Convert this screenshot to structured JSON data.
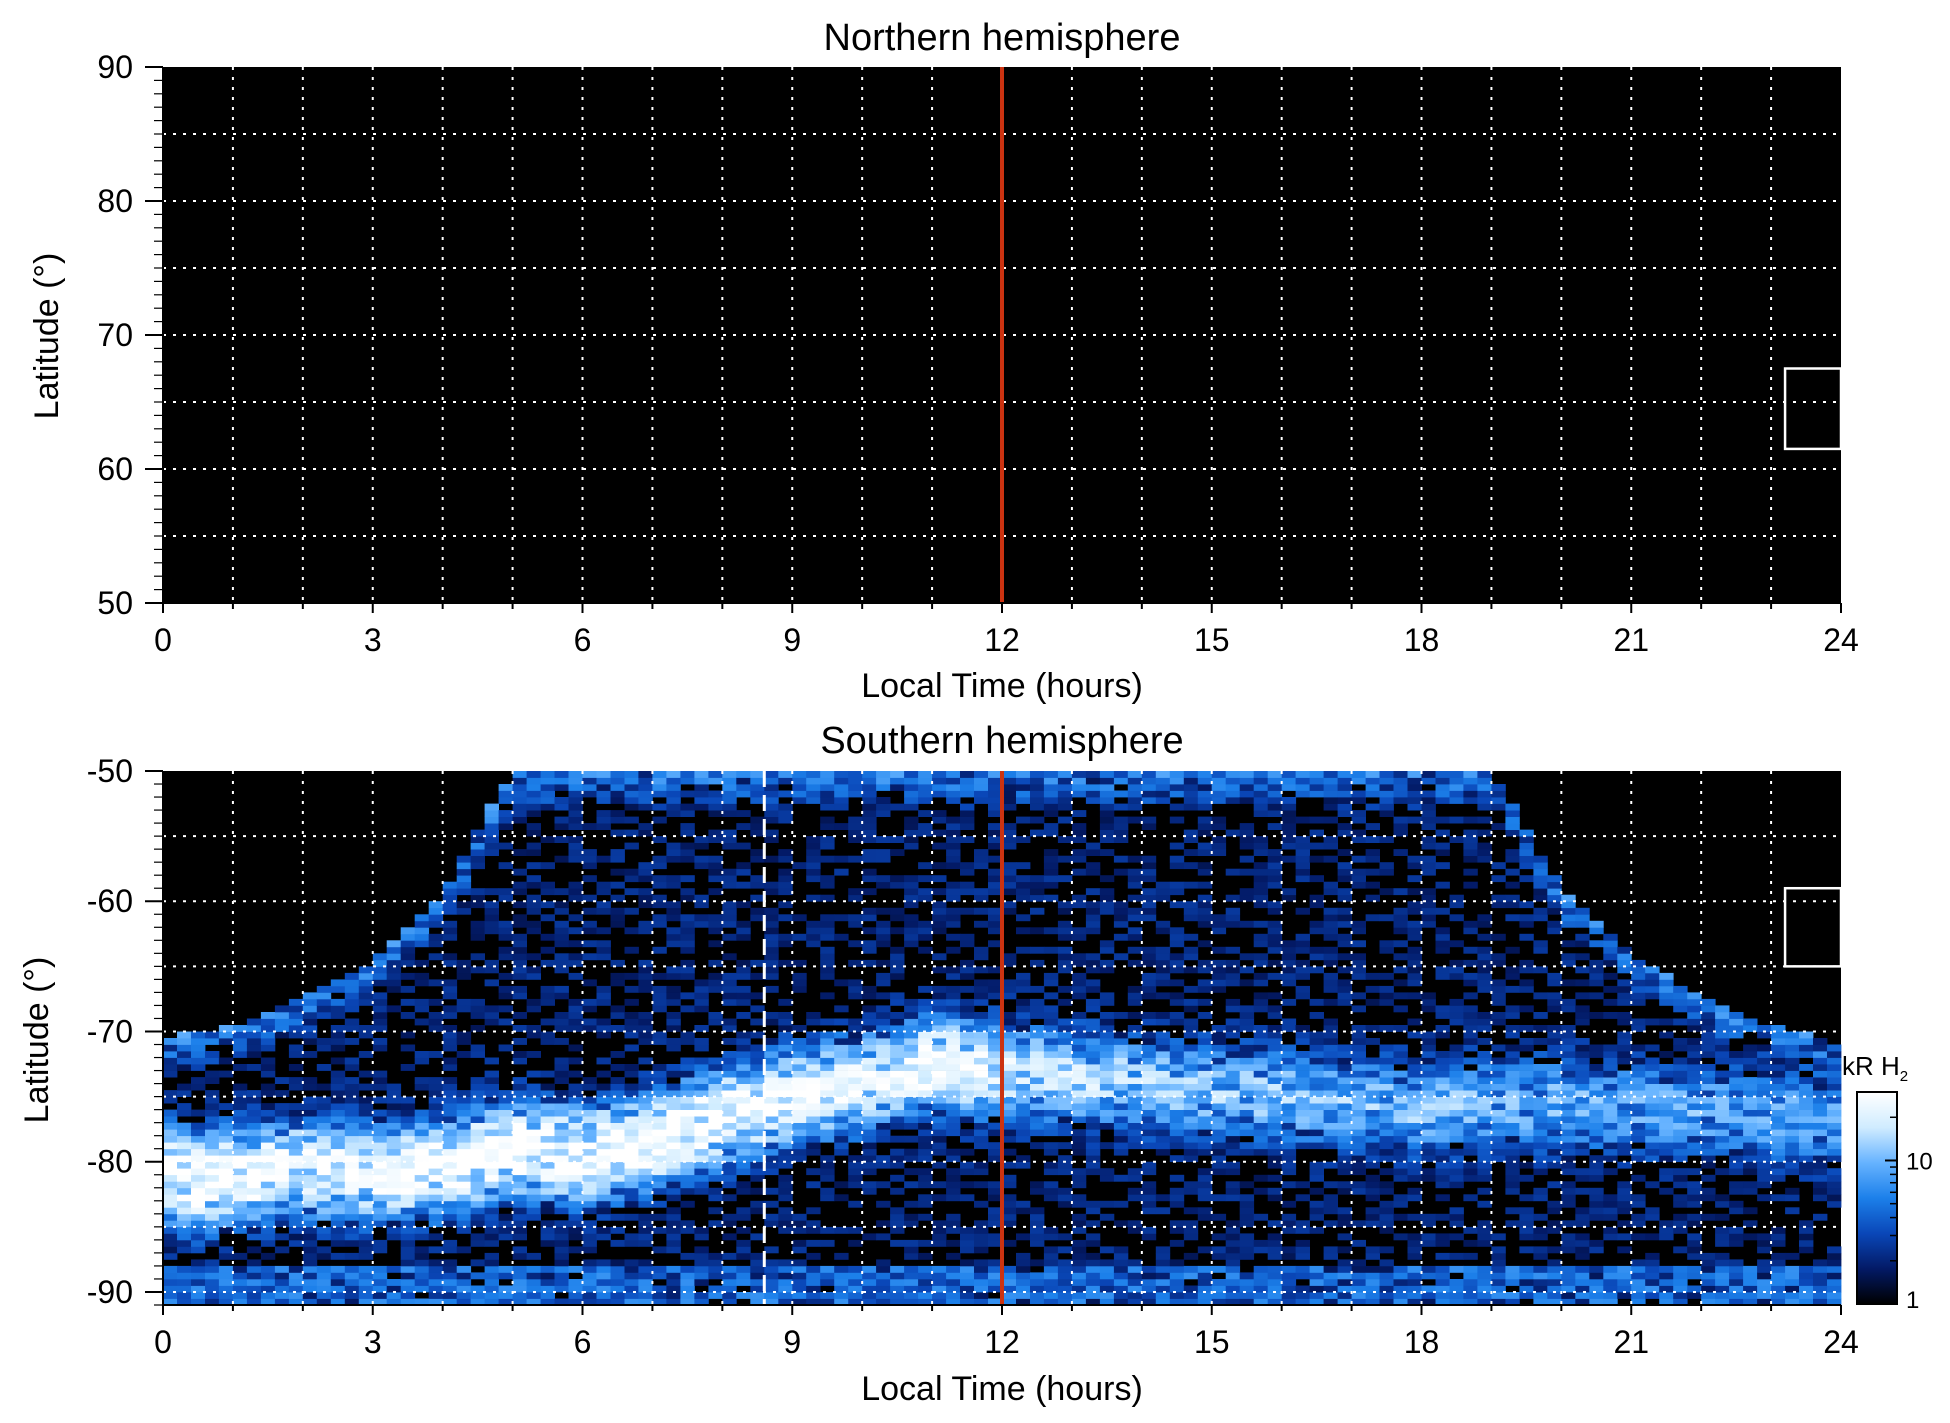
{
  "chart_data": [
    {
      "type": "heatmap",
      "title": "Northern hemisphere",
      "xlabel": "Local Time (hours)",
      "ylabel": "Latitude (°)",
      "xlim": [
        0,
        24
      ],
      "ylim": [
        50,
        90
      ],
      "x_ticks": [
        0,
        3,
        6,
        9,
        12,
        15,
        18,
        21,
        24
      ],
      "y_ticks": [
        50,
        60,
        70,
        80,
        90
      ],
      "x_tick_labels": [
        "0",
        "3",
        "6",
        "9",
        "12",
        "15",
        "18",
        "21",
        "24"
      ],
      "y_tick_labels": [
        "50",
        "60",
        "70",
        "80",
        "90"
      ],
      "grid": true,
      "emission": "none",
      "background_color": "#000000",
      "noon_line": {
        "x": 12,
        "color": "#cc3311"
      },
      "reference_box": {
        "x": [
          23.2,
          24
        ],
        "y": [
          61.5,
          67.5
        ]
      }
    },
    {
      "type": "heatmap",
      "title": "Southern hemisphere",
      "xlabel": "Local Time (hours)",
      "ylabel": "Latitude (°)",
      "xlim": [
        0,
        24
      ],
      "ylim": [
        -91,
        -50
      ],
      "x_ticks": [
        0,
        3,
        6,
        9,
        12,
        15,
        18,
        21,
        24
      ],
      "y_ticks": [
        -90,
        -80,
        -70,
        -60,
        -50
      ],
      "x_tick_labels": [
        "0",
        "3",
        "6",
        "9",
        "12",
        "15",
        "18",
        "21",
        "24"
      ],
      "y_tick_labels": [
        "-90",
        "-80",
        "-70",
        "-60",
        "-50"
      ],
      "grid": true,
      "background_color": "#000000",
      "noon_line": {
        "x": 12,
        "color": "#cc3311"
      },
      "dashed_line": {
        "x": 8.6,
        "color": "#ffffff"
      },
      "reference_box": {
        "x": [
          23.2,
          24
        ],
        "y": [
          -65,
          -59
        ]
      },
      "coverage_edge": {
        "lt": [
          0,
          1,
          2,
          3,
          4,
          4.5,
          5,
          6,
          9,
          12,
          15,
          18,
          19,
          19.5,
          20,
          21,
          22,
          23,
          24
        ],
        "lat": [
          -70.5,
          -69.5,
          -67.5,
          -64.5,
          -59.5,
          -54.5,
          -50,
          -50,
          -50,
          -50,
          -50,
          -50,
          -50,
          -54.5,
          -59,
          -64,
          -67.5,
          -69.5,
          -71
        ]
      },
      "auroral_oval": {
        "lt": [
          0,
          0.5,
          1,
          2,
          3,
          4,
          5,
          6,
          7,
          8,
          9,
          10,
          11,
          12,
          13,
          14,
          15,
          16,
          17,
          18,
          19,
          20,
          21,
          22,
          23,
          24
        ],
        "lat": [
          -81,
          -81.5,
          -81,
          -80.5,
          -81,
          -80.5,
          -79,
          -79.5,
          -78.5,
          -76.5,
          -75,
          -74,
          -72.5,
          -73,
          -73.5,
          -74,
          -74.5,
          -75,
          -75.5,
          -76,
          -75.5,
          -75.5,
          -76,
          -76,
          -76.5,
          -77
        ],
        "peak_kR": [
          30,
          30,
          30,
          26,
          22,
          28,
          30,
          30,
          28,
          28,
          24,
          20,
          26,
          18,
          14,
          12,
          10,
          10,
          9,
          9,
          8,
          8,
          8,
          7,
          7,
          7
        ]
      },
      "colorbar": {
        "label": "kR H",
        "label_subscript": "2",
        "scale": "log",
        "range": [
          1,
          30
        ],
        "ticks": [
          1,
          10
        ],
        "tick_labels": [
          "1",
          "10"
        ],
        "colors": [
          "#000000",
          "#031a66",
          "#0a47b8",
          "#1c80ea",
          "#66b3ff",
          "#d0ecff",
          "#ffffff"
        ]
      }
    }
  ]
}
